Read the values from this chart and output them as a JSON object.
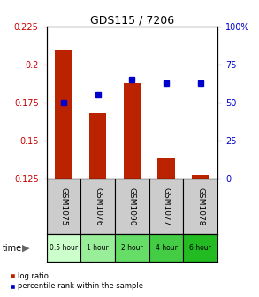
{
  "title": "GDS115 / 7206",
  "samples": [
    "GSM1075",
    "GSM1076",
    "GSM1090",
    "GSM1077",
    "GSM1078"
  ],
  "time_labels": [
    "0.5 hour",
    "1 hour",
    "2 hour",
    "4 hour",
    "6 hour"
  ],
  "log_ratio": [
    0.21,
    0.168,
    0.188,
    0.138,
    0.127
  ],
  "percentile": [
    50,
    55,
    65,
    63,
    63
  ],
  "bar_color": "#bb2200",
  "dot_color": "#0000cc",
  "ylim_left": [
    0.125,
    0.225
  ],
  "ylim_right": [
    0,
    100
  ],
  "yticks_left": [
    0.125,
    0.15,
    0.175,
    0.2,
    0.225
  ],
  "yticks_right": [
    0,
    25,
    50,
    75,
    100
  ],
  "ytick_labels_left": [
    "0.125",
    "0.15",
    "0.175",
    "0.2",
    "0.225"
  ],
  "ytick_labels_right": [
    "0",
    "25",
    "50",
    "75",
    "100%"
  ],
  "bar_width": 0.5,
  "time_colors": [
    "#ccffcc",
    "#99ee99",
    "#66dd66",
    "#44cc44",
    "#22bb22"
  ],
  "sample_bg_color": "#cccccc",
  "bg_color": "#ffffff"
}
